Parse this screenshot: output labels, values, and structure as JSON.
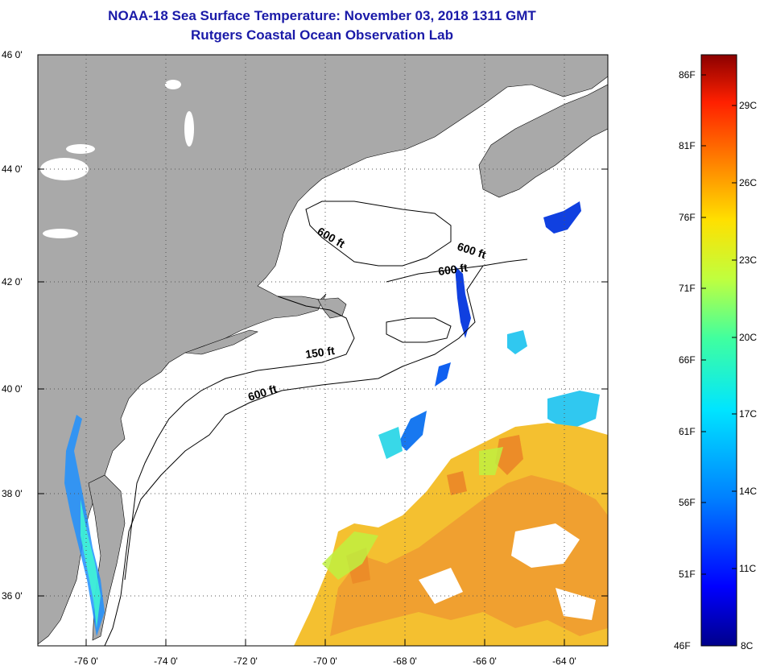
{
  "title": {
    "line1": "NOAA-18 Sea Surface Temperature:  November 03, 2018 1311 GMT",
    "line2": "Rutgers Coastal Ocean Observation Lab"
  },
  "map": {
    "lat_labels": [
      "46 0'",
      "44 0'",
      "42 0'",
      "40 0'",
      "38 0'",
      "36 0'"
    ],
    "lon_labels": [
      "-76 0'",
      "-74 0'",
      "-72 0'",
      "-70 0'",
      "-68 0'",
      "-66 0'",
      "-64 0'"
    ],
    "contour_labels": [
      "600 ft",
      "600 ft",
      "600 ft",
      "150 ft",
      "600 ft"
    ],
    "colors": {
      "land": "#a9a9a9",
      "ocean_cloud": "#ffffff",
      "contour": "#000000"
    }
  },
  "colorbar": {
    "f_labels": [
      "86F",
      "81F",
      "76F",
      "71F",
      "66F",
      "61F",
      "56F",
      "51F",
      "46F"
    ],
    "c_labels": [
      "29C",
      "26C",
      "23C",
      "20C",
      "17C",
      "14C",
      "11C",
      "8C"
    ],
    "colors": [
      "#00008b",
      "#0000ff",
      "#0080ff",
      "#00e5ff",
      "#40ff9f",
      "#bfff3f",
      "#ffe000",
      "#ff8000",
      "#ff2000",
      "#8b0000"
    ]
  }
}
